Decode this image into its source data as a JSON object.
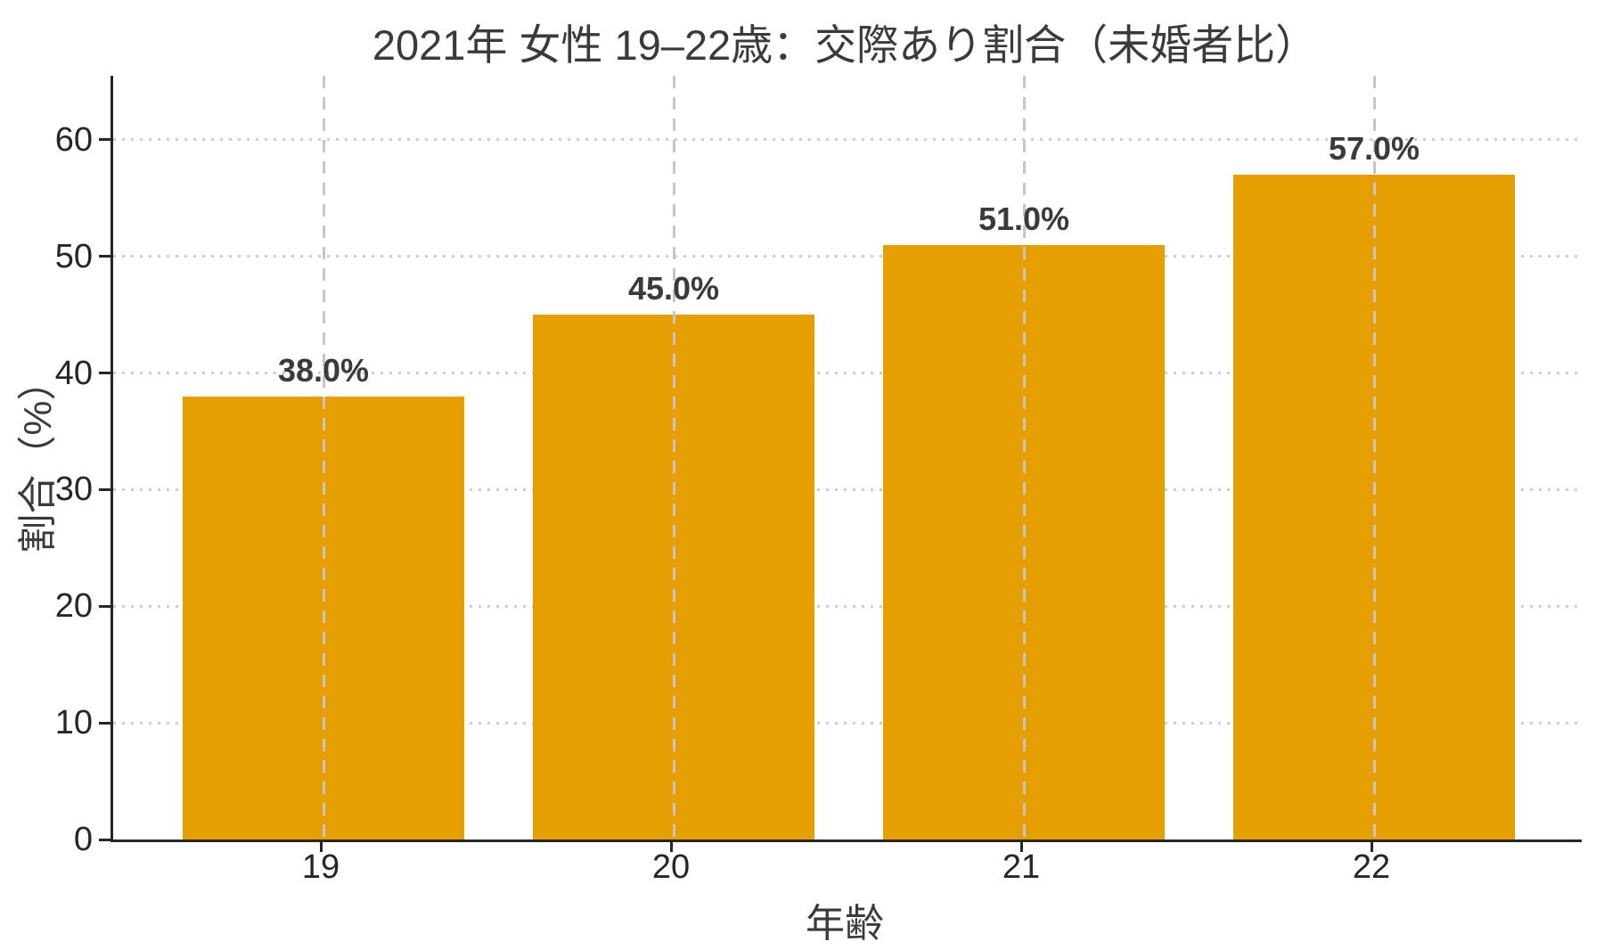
{
  "chart_data": {
    "type": "bar",
    "title": "2021年 女性 19–22歳：交際あり割合（未婚者比）",
    "xlabel": "年齢",
    "ylabel": "割合（%）",
    "categories": [
      "19",
      "20",
      "21",
      "22"
    ],
    "values": [
      38.0,
      45.0,
      51.0,
      57.0
    ],
    "value_labels": [
      "38.0%",
      "45.0%",
      "51.0%",
      "57.0%"
    ],
    "yticks": [
      0,
      10,
      20,
      30,
      40,
      50,
      60
    ],
    "ylim": [
      0,
      65.5
    ],
    "bar_color": "#E69F00",
    "grid": {
      "horizontal_style": "dotted",
      "vertical_style": "dashed",
      "horizontal_color": "#cdcdcd",
      "vertical_color": "#c6c6c6"
    },
    "legend": "none",
    "background_color": "#ffffff",
    "text_color": "#3a3a3a"
  }
}
